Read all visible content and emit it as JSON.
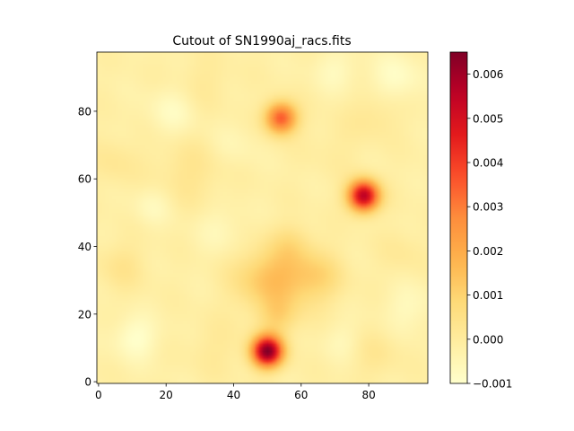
{
  "chart_data": {
    "type": "heatmap",
    "title": "Cutout of SN1990aj_racs.fits",
    "xlabel": "",
    "ylabel": "",
    "xlim": [
      -0.5,
      97.5
    ],
    "ylim": [
      -0.5,
      97.5
    ],
    "x_ticks": [
      0,
      20,
      40,
      60,
      80
    ],
    "y_ticks": [
      0,
      20,
      40,
      60,
      80
    ],
    "colormap": "YlOrRd",
    "colorbar": {
      "vmin": -0.001,
      "vmax": 0.0065,
      "ticks": [
        -0.001,
        0.0,
        0.001,
        0.002,
        0.003,
        0.004,
        0.005,
        0.006
      ],
      "tick_labels": [
        "−0.001",
        "0.000",
        "0.001",
        "0.002",
        "0.003",
        "0.004",
        "0.005",
        "0.006"
      ]
    },
    "background_level": -0.0002,
    "sources": [
      {
        "x": 50,
        "y": 9,
        "peak": 0.0066,
        "sigma": 3.2
      },
      {
        "x": 78.5,
        "y": 55,
        "peak": 0.0058,
        "sigma": 3.2
      },
      {
        "x": 54,
        "y": 78,
        "peak": 0.0038,
        "sigma": 3.3
      },
      {
        "x": 56,
        "y": 31,
        "peak": 0.0014,
        "sigma": 7.0
      },
      {
        "x": 47,
        "y": 30,
        "peak": 0.0008,
        "sigma": 6.0
      },
      {
        "x": 53,
        "y": 19,
        "peak": 0.0009,
        "sigma": 4.0
      },
      {
        "x": 66,
        "y": 31,
        "peak": 0.0007,
        "sigma": 5.0
      },
      {
        "x": 57,
        "y": 41,
        "peak": 0.0005,
        "sigma": 4.0
      },
      {
        "x": 27,
        "y": 62,
        "peak": 0.0005,
        "sigma": 7.0
      },
      {
        "x": 7,
        "y": 34,
        "peak": 0.0005,
        "sigma": 5.0
      },
      {
        "x": 82,
        "y": 79,
        "peak": 0.0004,
        "sigma": 5.0
      },
      {
        "x": 31,
        "y": 88,
        "peak": 0.0003,
        "sigma": 6.0
      },
      {
        "x": 5,
        "y": 65,
        "peak": 0.0004,
        "sigma": 5.0
      },
      {
        "x": 90,
        "y": 38,
        "peak": 0.0003,
        "sigma": 5.0
      },
      {
        "x": 35,
        "y": 10,
        "peak": 0.0003,
        "sigma": 6.0
      },
      {
        "x": 82,
        "y": 8,
        "peak": 0.0004,
        "sigma": 5.0
      },
      {
        "x": 70,
        "y": 70,
        "peak": 0.0002,
        "sigma": 6.0
      }
    ],
    "dips": [
      {
        "x": 11,
        "y": 13,
        "depth": -0.0008,
        "sigma": 4.5
      },
      {
        "x": 88,
        "y": 90,
        "depth": -0.0007,
        "sigma": 5.0
      },
      {
        "x": 22,
        "y": 80,
        "depth": -0.0006,
        "sigma": 5.0
      },
      {
        "x": 16,
        "y": 52,
        "depth": -0.0005,
        "sigma": 4.0
      },
      {
        "x": 92,
        "y": 22,
        "depth": -0.0005,
        "sigma": 5.0
      },
      {
        "x": 36,
        "y": 45,
        "depth": -0.0004,
        "sigma": 5.0
      },
      {
        "x": 70,
        "y": 92,
        "depth": -0.0005,
        "sigma": 4.5
      },
      {
        "x": 40,
        "y": 70,
        "depth": -0.0003,
        "sigma": 5.0
      },
      {
        "x": 72,
        "y": 12,
        "depth": -0.0004,
        "sigma": 4.0
      }
    ]
  }
}
